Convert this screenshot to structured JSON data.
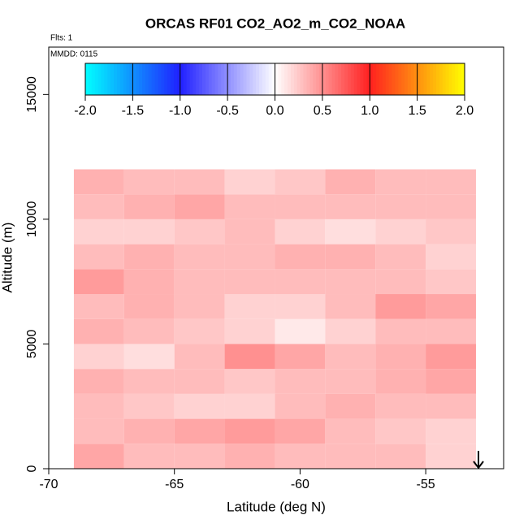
{
  "chart_data": {
    "type": "heatmap",
    "title": "ORCAS RF01 CO2_AO2_m_CO2_NOAA",
    "annotations": [
      "Flts: 1",
      "MMDD: 0115"
    ],
    "x_label": "Latitude (deg N)",
    "y_label": "Altitude (m)",
    "xlim": [
      -70,
      -51.9
    ],
    "ylim": [
      0,
      16900
    ],
    "xticks": [
      -70,
      -65,
      -60,
      -55
    ],
    "yticks": [
      0,
      5000,
      10000,
      15000
    ],
    "x_bins": [
      -69,
      -67,
      -65,
      -63,
      -61,
      -59,
      -57,
      -55,
      -53
    ],
    "y_bins": [
      0,
      1000,
      2000,
      3000,
      4000,
      5000,
      6000,
      7000,
      8000,
      9000,
      10000,
      11000,
      12000
    ],
    "values": [
      [
        0.4,
        0.3,
        0.3,
        0.35,
        0.3,
        0.3,
        0.3,
        0.2
      ],
      [
        0.3,
        0.35,
        0.4,
        0.45,
        0.4,
        0.3,
        0.25,
        0.2
      ],
      [
        0.3,
        0.25,
        0.2,
        0.2,
        0.3,
        0.35,
        0.3,
        0.3
      ],
      [
        0.35,
        0.3,
        0.3,
        0.25,
        0.3,
        0.3,
        0.35,
        0.4
      ],
      [
        0.2,
        0.15,
        0.3,
        0.5,
        0.4,
        0.3,
        0.35,
        0.45
      ],
      [
        0.35,
        0.3,
        0.25,
        0.2,
        0.1,
        0.2,
        0.3,
        0.3
      ],
      [
        0.3,
        0.35,
        0.3,
        0.2,
        0.2,
        0.3,
        0.45,
        0.4
      ],
      [
        0.45,
        0.35,
        0.3,
        0.3,
        0.3,
        0.3,
        0.3,
        0.25
      ],
      [
        0.3,
        0.35,
        0.3,
        0.3,
        0.35,
        0.35,
        0.3,
        0.2
      ],
      [
        0.2,
        0.2,
        0.25,
        0.3,
        0.2,
        0.15,
        0.2,
        0.25
      ],
      [
        0.3,
        0.35,
        0.4,
        0.3,
        0.3,
        0.3,
        0.3,
        0.3
      ],
      [
        0.35,
        0.3,
        0.3,
        0.2,
        0.25,
        0.35,
        0.3,
        0.3
      ]
    ],
    "colorbar": {
      "lim": [
        -2,
        2
      ],
      "ticks": [
        -2.0,
        -1.5,
        -1.0,
        -0.5,
        0.0,
        0.5,
        1.0,
        1.5,
        2.0
      ],
      "tick_labels": [
        "-2.0",
        "-1.5",
        "-1.0",
        "-0.5",
        "0.0",
        "0.5",
        "1.0",
        "1.5",
        "2.0"
      ],
      "stops": [
        [
          -2,
          "#00ffff"
        ],
        [
          -1,
          "#2020ff"
        ],
        [
          0,
          "#ffffff"
        ],
        [
          1,
          "#ff2020"
        ],
        [
          2,
          "#ffff00"
        ]
      ]
    }
  }
}
